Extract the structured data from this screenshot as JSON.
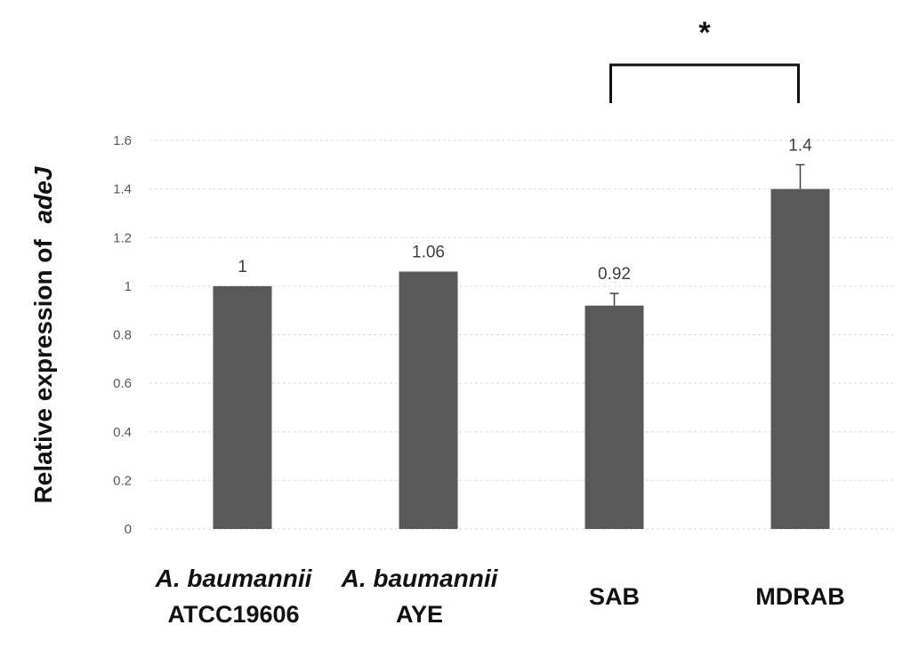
{
  "chart_data": {
    "type": "bar",
    "title": "",
    "xlabel": "",
    "ylabel": {
      "prefix": "Relative expression of",
      "gene": "adeJ"
    },
    "ylim": [
      0,
      1.6
    ],
    "yticks": [
      0,
      0.2,
      0.4,
      0.6,
      0.8,
      1,
      1.2,
      1.4,
      1.6
    ],
    "yticks_labels": [
      "0",
      "0.2",
      "0.4",
      "0.6",
      "0.8",
      "1",
      "1.2",
      "1.4",
      "1.6"
    ],
    "grid": true,
    "legend": "none",
    "bar_color": "#595959",
    "categories": [
      {
        "line1": "A. baumannii",
        "line2": "ATCC19606"
      },
      {
        "line1": "A. baumannii",
        "line2": "AYE"
      },
      {
        "line1": "",
        "line2": "SAB"
      },
      {
        "line1": "",
        "line2": "MDRAB"
      }
    ],
    "values": [
      1,
      1.06,
      0.92,
      1.4
    ],
    "data_labels": [
      "1",
      "1.06",
      "0.92",
      "1.4"
    ],
    "error": [
      0,
      0,
      0.05,
      0.1
    ],
    "annotations": [
      {
        "type": "significance-bracket",
        "from": 2,
        "to": 3,
        "label": "*"
      }
    ]
  }
}
